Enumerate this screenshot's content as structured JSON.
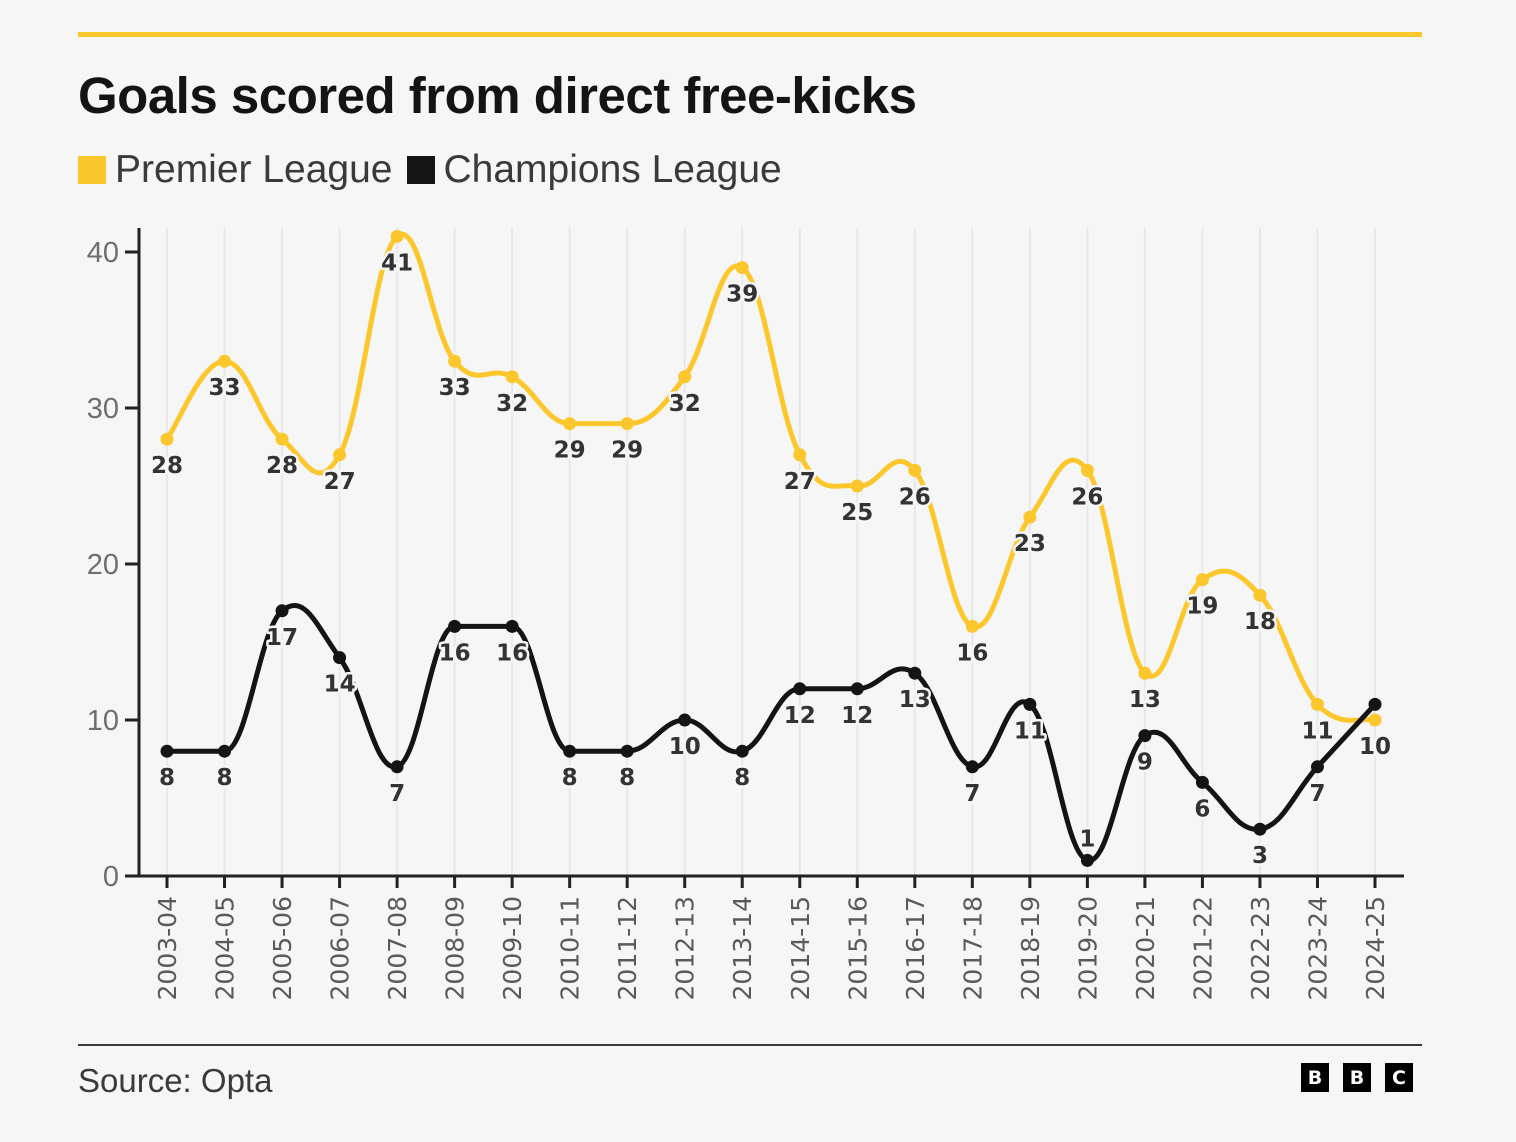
{
  "colors": {
    "premier_league": "#fcc72d",
    "champions_league": "#141414",
    "accent_rule": "#fcc72d"
  },
  "footer": {
    "source": "Source: Opta",
    "logo_letters": [
      "B",
      "B",
      "C"
    ]
  },
  "chart_data": {
    "type": "line",
    "title": "Goals scored from direct free-kicks",
    "xlabel": "",
    "ylabel": "",
    "ylim": [
      0,
      41
    ],
    "yticks": [
      0,
      10,
      20,
      30,
      40
    ],
    "grid": "vertical",
    "legend_position": "top-left",
    "smooth": true,
    "categories": [
      "2003-04",
      "2004-05",
      "2005-06",
      "2006-07",
      "2007-08",
      "2008-09",
      "2009-10",
      "2010-11",
      "2011-12",
      "2012-13",
      "2013-14",
      "2014-15",
      "2015-16",
      "2016-17",
      "2017-18",
      "2018-19",
      "2019-20",
      "2020-21",
      "2021-22",
      "2022-23",
      "2023-24",
      "2024-25"
    ],
    "series": [
      {
        "name": "Premier League",
        "color": "#fcc72d",
        "values": [
          28,
          33,
          28,
          27,
          41,
          33,
          32,
          29,
          29,
          32,
          39,
          27,
          25,
          26,
          16,
          23,
          26,
          13,
          19,
          18,
          11,
          10
        ],
        "label_shown": [
          true,
          true,
          true,
          true,
          true,
          true,
          true,
          true,
          true,
          true,
          true,
          true,
          true,
          true,
          true,
          true,
          true,
          true,
          true,
          true,
          true,
          true
        ],
        "label_position": [
          "below",
          "below",
          "below",
          "below",
          "below",
          "below",
          "below",
          "below",
          "below",
          "below",
          "below",
          "below",
          "below",
          "below",
          "below",
          "below",
          "below",
          "below",
          "below",
          "below",
          "below",
          "below"
        ]
      },
      {
        "name": "Champions League",
        "color": "#141414",
        "values": [
          8,
          8,
          17,
          14,
          7,
          16,
          16,
          8,
          8,
          10,
          8,
          12,
          12,
          13,
          7,
          11,
          1,
          9,
          6,
          3,
          7,
          11
        ],
        "label_shown": [
          true,
          true,
          true,
          true,
          true,
          true,
          true,
          true,
          true,
          true,
          true,
          true,
          true,
          true,
          true,
          true,
          true,
          true,
          true,
          true,
          true,
          false
        ],
        "label_position": [
          "below",
          "below",
          "below",
          "below",
          "below",
          "below",
          "below",
          "below",
          "below",
          "below",
          "below",
          "below",
          "below",
          "below",
          "below",
          "below",
          "above",
          "below",
          "below",
          "below",
          "below",
          "below"
        ]
      }
    ]
  }
}
